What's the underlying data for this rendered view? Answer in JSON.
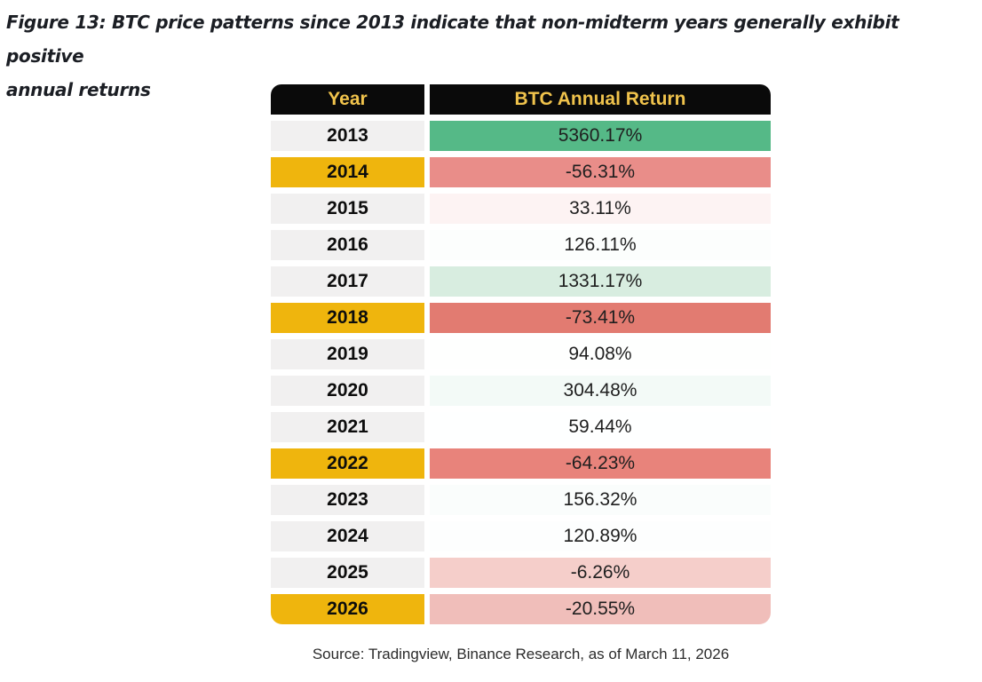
{
  "figure": {
    "title_line1": "Figure 13: BTC price patterns since 2013 indicate that non-midterm years generally exhibit positive",
    "title_line2": "annual returns",
    "source": "Source: Tradingview, Binance Research, as of March 11, 2026"
  },
  "colors": {
    "header_bg": "#0A0A0A",
    "header_text": "#F0C34C",
    "year_default_bg": "#F1F0F0",
    "year_midterm_bg": "#EFB50D",
    "positive_strong_green": "#55B987",
    "negative_strong_red": "#E27B71"
  },
  "table": {
    "headers": {
      "year": "Year",
      "return": "BTC Annual Return"
    },
    "rows": [
      {
        "year": "2013",
        "return": "5360.17%",
        "midterm": false,
        "year_bg": "#F1F0F0",
        "return_bg": "#55B987"
      },
      {
        "year": "2014",
        "return": "-56.31%",
        "midterm": true,
        "year_bg": "#EFB50D",
        "return_bg": "#E98D89"
      },
      {
        "year": "2015",
        "return": "33.11%",
        "midterm": false,
        "year_bg": "#F1F0F0",
        "return_bg": "#FDF3F3"
      },
      {
        "year": "2016",
        "return": "126.11%",
        "midterm": false,
        "year_bg": "#F1F0F0",
        "return_bg": "#FCFEFD"
      },
      {
        "year": "2017",
        "return": "1331.17%",
        "midterm": false,
        "year_bg": "#F1F0F0",
        "return_bg": "#D8EDE0"
      },
      {
        "year": "2018",
        "return": "-73.41%",
        "midterm": true,
        "year_bg": "#EFB50D",
        "return_bg": "#E27B71"
      },
      {
        "year": "2019",
        "return": "94.08%",
        "midterm": false,
        "year_bg": "#F1F0F0",
        "return_bg": "#FEFFFE"
      },
      {
        "year": "2020",
        "return": "304.48%",
        "midterm": false,
        "year_bg": "#F1F0F0",
        "return_bg": "#F3FAF7"
      },
      {
        "year": "2021",
        "return": "59.44%",
        "midterm": false,
        "year_bg": "#F1F0F0",
        "return_bg": "#FEFFFF"
      },
      {
        "year": "2022",
        "return": "-64.23%",
        "midterm": true,
        "year_bg": "#EFB50D",
        "return_bg": "#E8837B"
      },
      {
        "year": "2023",
        "return": "156.32%",
        "midterm": false,
        "year_bg": "#F1F0F0",
        "return_bg": "#FAFDFC"
      },
      {
        "year": "2024",
        "return": "120.89%",
        "midterm": false,
        "year_bg": "#F1F0F0",
        "return_bg": "#FDFEFE"
      },
      {
        "year": "2025",
        "return": "-6.26%",
        "midterm": false,
        "year_bg": "#F1F0F0",
        "return_bg": "#F5CECA"
      },
      {
        "year": "2026",
        "return": "-20.55%",
        "midterm": true,
        "year_bg": "#EFB50D",
        "return_bg": "#F0BEBA"
      }
    ]
  },
  "chart_data": {
    "type": "table",
    "title": "Figure 13: BTC price patterns since 2013 indicate that non-midterm years generally exhibit positive annual returns",
    "columns": [
      "Year",
      "BTC Annual Return"
    ],
    "years": [
      2013,
      2014,
      2015,
      2016,
      2017,
      2018,
      2019,
      2020,
      2021,
      2022,
      2023,
      2024,
      2025,
      2026
    ],
    "returns_pct": [
      5360.17,
      -56.31,
      33.11,
      126.11,
      1331.17,
      -73.41,
      94.08,
      304.48,
      59.44,
      -64.23,
      156.32,
      120.89,
      -6.26,
      -20.55
    ],
    "midterm_years_highlighted": [
      2014,
      2018,
      2022,
      2026
    ],
    "source": "Source: Tradingview, Binance Research, as of March 11, 2026"
  }
}
